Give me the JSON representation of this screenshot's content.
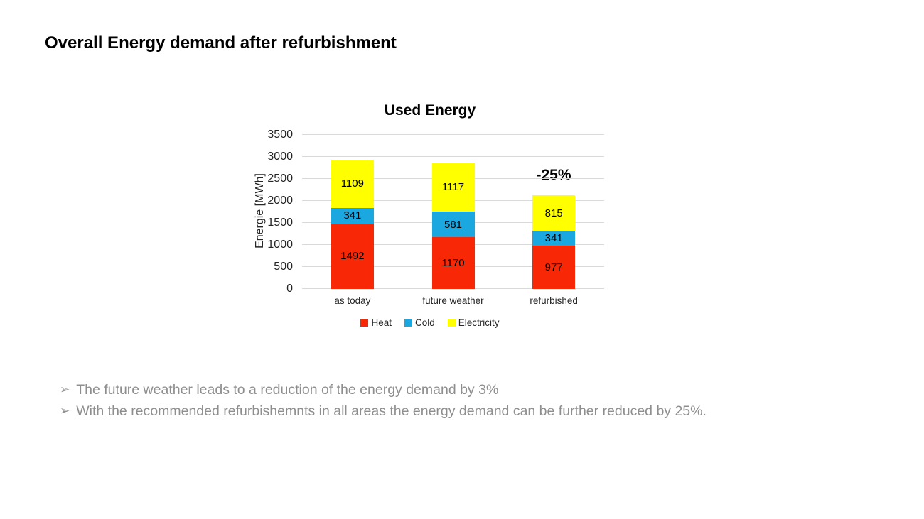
{
  "slide": {
    "title": "Overall Energy demand after refurbishment",
    "bullets": [
      {
        "marker": "➢",
        "text": "The future weather leads to a reduction of the energy demand by 3%"
      },
      {
        "marker": "➢",
        "text": "With the recommended refurbishemnts in all areas the energy demand can be further reduced by 25%."
      }
    ]
  },
  "chart_data": {
    "type": "bar",
    "stacked": true,
    "title": "Used Energy",
    "ylabel": "Energie [MWh]",
    "xlabel": "",
    "categories": [
      "as today",
      "future weather",
      "refurbished"
    ],
    "series": [
      {
        "name": "Heat",
        "color": "#f82705",
        "values": [
          1492,
          1170,
          977
        ]
      },
      {
        "name": "Cold",
        "color": "#1ba7e0",
        "values": [
          341,
          581,
          341
        ]
      },
      {
        "name": "Electricity",
        "color": "#ffff00",
        "values": [
          1109,
          1117,
          815
        ]
      }
    ],
    "totals": [
      2942,
      2868,
      2133
    ],
    "ylim": [
      0,
      3500
    ],
    "ytick_step": 500,
    "grid": true,
    "legend_position": "bottom",
    "annotation": {
      "text": "-25%",
      "category": "refurbished"
    },
    "colors": {
      "gridline": "#d9d9d9",
      "text": "#262626",
      "bullet_text": "#8e8e8e"
    }
  }
}
